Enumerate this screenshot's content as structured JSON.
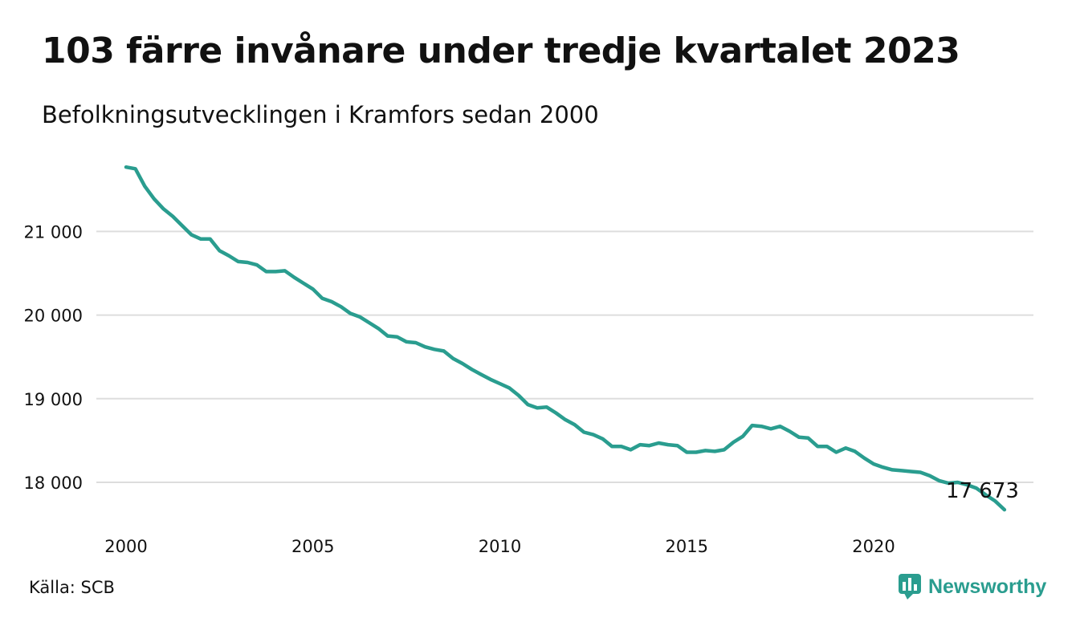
{
  "header": {
    "title": "103 färre invånare under tredje kvartalet 2023",
    "subtitle": "Befolkningsutvecklingen i Kramfors sedan 2000"
  },
  "footer": {
    "source": "Källa: SCB",
    "brand": "Newsworthy"
  },
  "colors": {
    "line": "#2a9d8f",
    "grid": "#dddddd",
    "text": "#111111"
  },
  "icons": {
    "brand": "newsworthy-logo-icon"
  },
  "chart_data": {
    "type": "line",
    "title": "103 färre invånare under tredje kvartalet 2023",
    "subtitle": "Befolkningsutvecklingen i Kramfors sedan 2000",
    "xlabel": "",
    "ylabel": "",
    "xlim": [
      2000,
      2023.75
    ],
    "ylim": [
      17550,
      21900
    ],
    "grid": true,
    "legend": "none",
    "x_ticks": [
      2000,
      2005,
      2010,
      2015,
      2020
    ],
    "x_tick_labels": [
      "2000",
      "2005",
      "2010",
      "2015",
      "2020"
    ],
    "y_ticks": [
      18000,
      19000,
      20000,
      21000
    ],
    "y_tick_labels": [
      "18 000",
      "19 000",
      "20 000",
      "21 000"
    ],
    "end_label": "17 673",
    "series": [
      {
        "x": [
          2000.0,
          2000.25,
          2000.5,
          2000.75,
          2001.0,
          2001.25,
          2001.5,
          2001.75,
          2002.0,
          2002.25,
          2002.5,
          2002.75,
          2003.0,
          2003.25,
          2003.5,
          2003.75,
          2004.0,
          2004.25,
          2004.5,
          2004.75,
          2005.0,
          2005.25,
          2005.5,
          2005.75,
          2006.0,
          2006.25,
          2006.5,
          2006.75,
          2007.0,
          2007.25,
          2007.5,
          2007.75,
          2008.0,
          2008.25,
          2008.5,
          2008.75,
          2009.0,
          2009.25,
          2009.5,
          2009.75,
          2010.0,
          2010.25,
          2010.5,
          2010.75,
          2011.0,
          2011.25,
          2011.5,
          2011.75,
          2012.0,
          2012.25,
          2012.5,
          2012.75,
          2013.0,
          2013.25,
          2013.5,
          2013.75,
          2014.0,
          2014.25,
          2014.5,
          2014.75,
          2015.0,
          2015.25,
          2015.5,
          2015.75,
          2016.0,
          2016.25,
          2016.5,
          2016.75,
          2017.0,
          2017.25,
          2017.5,
          2017.75,
          2018.0,
          2018.25,
          2018.5,
          2018.75,
          2019.0,
          2019.25,
          2019.5,
          2019.75,
          2020.0,
          2020.25,
          2020.5,
          2020.75,
          2021.0,
          2021.25,
          2021.5,
          2021.75,
          2022.0,
          2022.25,
          2022.5,
          2022.75,
          2023.0,
          2023.25,
          2023.5
        ],
        "values": [
          21770,
          21750,
          21540,
          21390,
          21270,
          21180,
          21070,
          20960,
          20910,
          20910,
          20770,
          20710,
          20640,
          20630,
          20600,
          20520,
          20520,
          20530,
          20450,
          20380,
          20310,
          20200,
          20160,
          20100,
          20020,
          19980,
          19910,
          19840,
          19750,
          19740,
          19680,
          19670,
          19620,
          19590,
          19570,
          19480,
          19420,
          19350,
          19290,
          19230,
          19180,
          19130,
          19040,
          18930,
          18890,
          18900,
          18830,
          18750,
          18690,
          18600,
          18570,
          18520,
          18430,
          18430,
          18390,
          18450,
          18440,
          18470,
          18450,
          18440,
          18360,
          18360,
          18380,
          18370,
          18390,
          18480,
          18550,
          18680,
          18670,
          18640,
          18670,
          18610,
          18540,
          18530,
          18430,
          18430,
          18360,
          18410,
          18370,
          18290,
          18220,
          18180,
          18150,
          18140,
          18130,
          18120,
          18080,
          18020,
          17990,
          18000,
          17970,
          17930,
          17850,
          17776,
          17673
        ]
      }
    ]
  }
}
